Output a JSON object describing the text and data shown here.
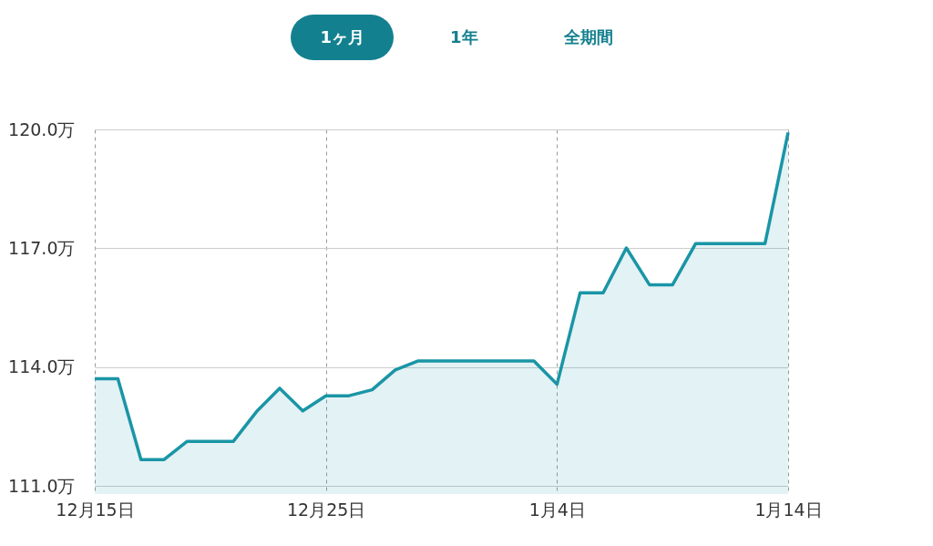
{
  "chart_data": {
    "type": "area",
    "annotations": [
      "1ヶ月",
      "1年",
      "全期間"
    ],
    "categories": [
      "12月15日",
      null,
      null,
      null,
      null,
      null,
      null,
      null,
      null,
      null,
      "12月25日",
      null,
      null,
      null,
      null,
      null,
      null,
      null,
      null,
      null,
      "1月4日",
      null,
      null,
      null,
      null,
      null,
      null,
      null,
      null,
      null,
      "1月14日"
    ],
    "series": [
      {
        "color": "#1a95a6",
        "values": [
          113.71,
          113.71,
          111.67,
          111.67,
          112.13,
          112.13,
          112.13,
          112.88,
          113.47,
          112.9,
          113.28,
          113.28,
          113.43,
          113.93,
          114.16,
          114.16,
          114.16,
          114.16,
          114.16,
          114.16,
          113.57,
          115.88,
          115.88,
          117.01,
          116.08,
          116.08,
          117.12,
          117.12,
          117.12,
          117.12,
          119.92
        ]
      }
    ],
    "ylim": [
      110.8,
      120
    ],
    "yticks": [
      {
        "value": 111,
        "label": "111.0万"
      },
      {
        "value": 114,
        "label": "114.0万"
      },
      {
        "value": 117,
        "label": "117.0万"
      },
      {
        "value": 120,
        "label": "120.0万"
      }
    ],
    "grid": true,
    "marker": "none",
    "line_style": "solid"
  }
}
